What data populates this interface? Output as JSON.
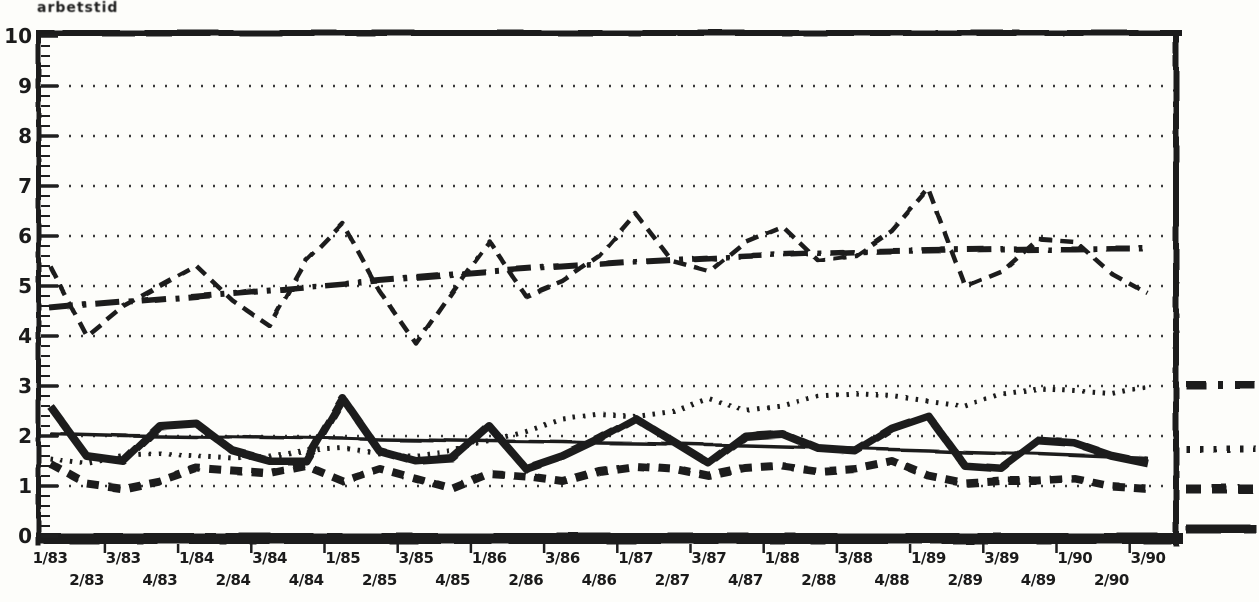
{
  "title": "arbetstid",
  "colors": {
    "ink": "#1f1f1f",
    "paper": "#fdfdfa"
  },
  "chart_data": {
    "type": "line",
    "title": "arbetstid",
    "x_categories": [
      "1/83",
      "2/83",
      "3/83",
      "4/83",
      "1/84",
      "2/84",
      "3/84",
      "4/84",
      "1/85",
      "2/85",
      "3/85",
      "4/85",
      "1/86",
      "2/86",
      "3/86",
      "4/86",
      "1/87",
      "2/87",
      "3/87",
      "4/87",
      "1/88",
      "2/88",
      "3/88",
      "4/88",
      "1/89",
      "2/89",
      "3/89",
      "4/89",
      "1/90",
      "2/90",
      "3/90"
    ],
    "xlabel": "",
    "ylabel": "arbetstid",
    "ylim": [
      0,
      10
    ],
    "yticks": [
      0,
      1,
      2,
      3,
      4,
      5,
      6,
      7,
      8,
      9,
      10
    ],
    "y_tick_labels": [
      "0",
      "1",
      "2",
      "3",
      "4",
      "5",
      "6",
      "7",
      "8",
      "9",
      "10"
    ],
    "y_minor_tick_step": 0.2,
    "grid": "dotted horizontal lines at integer values 1-9",
    "x_label_layout": "two staggered rows, odd quarters top row, even quarters bottom row",
    "legend_position": "right margin, line-style samples only (no text)",
    "series": [
      {
        "id": "seasonal-dashed",
        "style": "dashed",
        "weight": "medium",
        "in_legend": false,
        "values": [
          5.4,
          4.0,
          4.6,
          5.0,
          5.4,
          4.7,
          4.2,
          5.5,
          6.25,
          4.9,
          3.85,
          4.9,
          5.9,
          4.8,
          5.1,
          5.6,
          6.45,
          5.5,
          5.3,
          5.9,
          6.2,
          5.5,
          5.6,
          6.1,
          6.95,
          5.0,
          5.3,
          5.95,
          5.9,
          5.25,
          4.85
        ]
      },
      {
        "id": "trend-dash-dot",
        "style": "dash-dot",
        "weight": "bold",
        "in_legend": true,
        "values": [
          4.55,
          4.62,
          4.68,
          4.74,
          4.8,
          4.86,
          4.92,
          4.98,
          5.04,
          5.1,
          5.16,
          5.22,
          5.28,
          5.33,
          5.38,
          5.43,
          5.48,
          5.52,
          5.56,
          5.6,
          5.63,
          5.66,
          5.68,
          5.7,
          5.71,
          5.72,
          5.73,
          5.74,
          5.74,
          5.75,
          5.75
        ]
      },
      {
        "id": "dotted",
        "style": "dotted",
        "weight": "bold",
        "in_legend": true,
        "values": [
          1.55,
          1.45,
          1.6,
          1.65,
          1.6,
          1.55,
          1.6,
          1.7,
          1.75,
          1.65,
          1.6,
          1.7,
          1.9,
          2.1,
          2.35,
          2.45,
          2.4,
          2.5,
          2.75,
          2.5,
          2.6,
          2.8,
          2.85,
          2.8,
          2.7,
          2.6,
          2.85,
          2.95,
          2.9,
          2.85,
          3.0
        ]
      },
      {
        "id": "bold-dashed",
        "style": "dashed",
        "weight": "bold",
        "in_legend": true,
        "values": [
          1.45,
          1.05,
          0.95,
          1.1,
          1.35,
          1.3,
          1.25,
          1.4,
          1.1,
          1.35,
          1.15,
          0.95,
          1.25,
          1.2,
          1.1,
          1.3,
          1.4,
          1.35,
          1.2,
          1.35,
          1.4,
          1.3,
          1.35,
          1.5,
          1.2,
          1.05,
          1.1,
          1.1,
          1.15,
          1.0,
          0.95
        ]
      },
      {
        "id": "bold-solid",
        "style": "solid",
        "weight": "bold",
        "in_legend": true,
        "values": [
          2.6,
          1.6,
          1.5,
          2.2,
          2.25,
          1.7,
          1.5,
          1.5,
          2.75,
          1.7,
          1.5,
          1.55,
          2.2,
          1.35,
          1.6,
          1.95,
          2.35,
          1.9,
          1.45,
          2.0,
          2.05,
          1.75,
          1.7,
          2.15,
          2.4,
          1.4,
          1.35,
          1.9,
          1.85,
          1.6,
          1.45
        ]
      },
      {
        "id": "thin-solid",
        "style": "solid",
        "weight": "thin",
        "in_legend": false,
        "values": [
          2.05,
          2.03,
          2.01,
          2.0,
          1.99,
          1.98,
          1.97,
          1.96,
          1.95,
          1.93,
          1.92,
          1.91,
          1.9,
          1.89,
          1.88,
          1.86,
          1.85,
          1.84,
          1.82,
          1.81,
          1.79,
          1.77,
          1.75,
          1.73,
          1.71,
          1.68,
          1.66,
          1.64,
          1.61,
          1.58,
          1.55
        ]
      }
    ],
    "legend_entries": [
      {
        "sample": "dash-dot-line"
      },
      {
        "sample": "dotted-line"
      },
      {
        "sample": "bold-dashed-line"
      },
      {
        "sample": "bold-solid-line"
      }
    ]
  }
}
